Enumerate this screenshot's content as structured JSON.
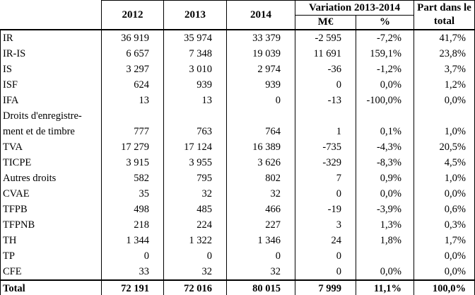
{
  "table": {
    "headers": {
      "y2012": "2012",
      "y2013": "2013",
      "y2014": "2014",
      "variation": "Variation 2013-2014",
      "variation_me": "M€",
      "variation_pct": "%",
      "part": "Part dans le total"
    },
    "rows": [
      {
        "label": "IR",
        "y2012": "36 919",
        "y2013": "35 974",
        "y2014": "33 379",
        "var_me": "-2 595",
        "var_pct": "-7,2%",
        "part": "41,7%"
      },
      {
        "label": "IR-IS",
        "y2012": "6 657",
        "y2013": "7 348",
        "y2014": "19 039",
        "var_me": "11 691",
        "var_pct": "159,1%",
        "part": "23,8%"
      },
      {
        "label": "IS",
        "y2012": "3 297",
        "y2013": "3 010",
        "y2014": "2 974",
        "var_me": "-36",
        "var_pct": "-1,2%",
        "part": "3,7%"
      },
      {
        "label": "ISF",
        "y2012": "624",
        "y2013": "939",
        "y2014": "939",
        "var_me": "0",
        "var_pct": "0,0%",
        "part": "1,2%"
      },
      {
        "label": "IFA",
        "y2012": "13",
        "y2013": "13",
        "y2014": "0",
        "var_me": "-13",
        "var_pct": "-100,0%",
        "part": "0,0%"
      },
      {
        "label": "Droits d'enregistre-\nment et de timbre",
        "y2012": "777",
        "y2013": "763",
        "y2014": "764",
        "var_me": "1",
        "var_pct": "0,1%",
        "part": "1,0%"
      },
      {
        "label": "TVA",
        "y2012": "17 279",
        "y2013": "17 124",
        "y2014": "16 389",
        "var_me": "-735",
        "var_pct": "-4,3%",
        "part": "20,5%"
      },
      {
        "label": "TICPE",
        "y2012": "3 915",
        "y2013": "3 955",
        "y2014": "3 626",
        "var_me": "-329",
        "var_pct": "-8,3%",
        "part": "4,5%"
      },
      {
        "label": "Autres droits",
        "y2012": "582",
        "y2013": "795",
        "y2014": "802",
        "var_me": "7",
        "var_pct": "0,9%",
        "part": "1,0%"
      },
      {
        "label": "CVAE",
        "y2012": "35",
        "y2013": "32",
        "y2014": "32",
        "var_me": "0",
        "var_pct": "0,0%",
        "part": "0,0%"
      },
      {
        "label": "TFPB",
        "y2012": "498",
        "y2013": "485",
        "y2014": "466",
        "var_me": "-19",
        "var_pct": "-3,9%",
        "part": "0,6%"
      },
      {
        "label": "TFPNB",
        "y2012": "218",
        "y2013": "224",
        "y2014": "227",
        "var_me": "3",
        "var_pct": "1,3%",
        "part": "0,3%"
      },
      {
        "label": "TH",
        "y2012": "1 344",
        "y2013": "1 322",
        "y2014": "1 346",
        "var_me": "24",
        "var_pct": "1,8%",
        "part": "1,7%"
      },
      {
        "label": "TP",
        "y2012": "0",
        "y2013": "0",
        "y2014": "0",
        "var_me": "0",
        "var_pct": "",
        "part": "0,0%"
      },
      {
        "label": "CFE",
        "y2012": "33",
        "y2013": "32",
        "y2014": "32",
        "var_me": "0",
        "var_pct": "0,0%",
        "part": "0,0%"
      }
    ],
    "total": {
      "label": "Total",
      "y2012": "72 191",
      "y2013": "72 016",
      "y2014": "80 015",
      "var_me": "7 999",
      "var_pct": "11,1%",
      "part": "100,0%"
    }
  }
}
